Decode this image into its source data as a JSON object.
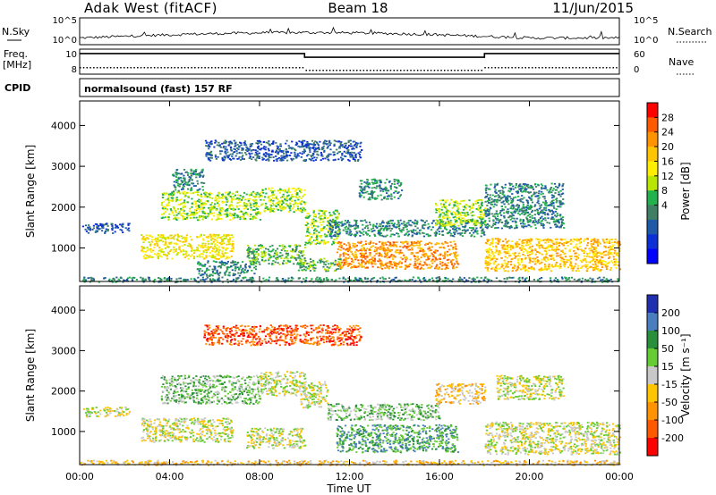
{
  "header": {
    "station": "Adak West (fitACF)",
    "beam": "Beam 18",
    "date": "11/Jun/2015"
  },
  "top_panels": {
    "nsky_label": "N.Sky",
    "nsky_ticks": [
      "10^5",
      "10^0"
    ],
    "nsearch_label": "N.Search",
    "nsearch_ticks": [
      "10^5",
      "10^0"
    ],
    "freq_label_1": "Freq.",
    "freq_label_2": "[MHz]",
    "freq_ticks": [
      "10",
      "8"
    ],
    "freq_mhz": {
      "t": [
        0,
        10,
        10,
        18,
        18,
        24
      ],
      "v": [
        10.6,
        10.6,
        10.1,
        10.1,
        10.6,
        10.6
      ]
    },
    "nave_label": "Nave",
    "nave_ticks": [
      "60",
      "0"
    ],
    "cpid_label": "CPID",
    "cpid_text": "normalsound (fast) 157 RF"
  },
  "chart_data": [
    {
      "type": "heatmap",
      "name": "power",
      "xlabel": "Time UT",
      "ylabel": "Slant Range [km]",
      "x_ticks": [
        "00:00",
        "04:00",
        "08:00",
        "12:00",
        "16:00",
        "20:00",
        "00:00"
      ],
      "y_ticks": [
        "1000",
        "2000",
        "3000",
        "4000"
      ],
      "xlim": [
        0,
        24
      ],
      "ylim": [
        180,
        4600
      ],
      "colorbar": {
        "label": "Power [dB]",
        "ticks": [
          "28",
          "24",
          "20",
          "16",
          "12",
          "8",
          "4"
        ],
        "colors": [
          "#ff0000",
          "#ff5a00",
          "#ff9400",
          "#ffc400",
          "#ffee00",
          "#b8e600",
          "#22b14c",
          "#3f7f66",
          "#1e5aa8",
          "#0d2fd6",
          "#0000ff"
        ]
      },
      "regions": [
        {
          "t0": 0.0,
          "t1": 24.0,
          "r0": 180,
          "r1": 300,
          "level": 3
        },
        {
          "t0": 0.1,
          "t1": 2.2,
          "r0": 1380,
          "r1": 1620,
          "level": 2
        },
        {
          "t0": 2.7,
          "t1": 6.8,
          "r0": 750,
          "r1": 1350,
          "level": 6
        },
        {
          "t0": 5.2,
          "t1": 7.8,
          "r0": 330,
          "r1": 700,
          "level": 3
        },
        {
          "t0": 3.6,
          "t1": 8.0,
          "r0": 1700,
          "r1": 2400,
          "level": 5
        },
        {
          "t0": 4.1,
          "t1": 5.5,
          "r0": 2400,
          "r1": 2950,
          "level": 3
        },
        {
          "t0": 8.0,
          "t1": 10.0,
          "r0": 1900,
          "r1": 2500,
          "level": 5
        },
        {
          "t0": 7.4,
          "t1": 10.0,
          "r0": 600,
          "r1": 1100,
          "level": 4
        },
        {
          "t0": 9.7,
          "t1": 11.6,
          "r0": 450,
          "r1": 760,
          "level": 4
        },
        {
          "t0": 10.0,
          "t1": 11.5,
          "r0": 1100,
          "r1": 1950,
          "level": 5
        },
        {
          "t0": 11.4,
          "t1": 16.8,
          "r0": 500,
          "r1": 1180,
          "level": 8
        },
        {
          "t0": 11.0,
          "t1": 18.0,
          "r0": 1300,
          "r1": 1700,
          "level": 3
        },
        {
          "t0": 15.8,
          "t1": 18.0,
          "r0": 1550,
          "r1": 2200,
          "level": 5
        },
        {
          "t0": 12.4,
          "t1": 14.3,
          "r0": 2200,
          "r1": 2700,
          "level": 3
        },
        {
          "t0": 18.0,
          "t1": 21.5,
          "r0": 1500,
          "r1": 2600,
          "level": 3
        },
        {
          "t0": 18.0,
          "t1": 24.0,
          "r0": 450,
          "r1": 1250,
          "level": 7
        },
        {
          "t0": 5.5,
          "t1": 12.5,
          "r0": 3150,
          "r1": 3650,
          "level": 2
        }
      ]
    },
    {
      "type": "heatmap",
      "name": "velocity",
      "xlabel": "Time UT",
      "ylabel": "Slant Range [km]",
      "x_ticks": [
        "00:00",
        "04:00",
        "08:00",
        "12:00",
        "16:00",
        "20:00",
        "00:00"
      ],
      "y_ticks": [
        "1000",
        "2000",
        "3000",
        "4000"
      ],
      "xlim": [
        0,
        24
      ],
      "ylim": [
        180,
        4600
      ],
      "colorbar": {
        "label": "Velocity [m s⁻¹]",
        "ticks": [
          "200",
          "100",
          "50",
          "15",
          "-15",
          "-50",
          "-100",
          "-200"
        ],
        "colors": [
          "#1f2fb0",
          "#4a7fbf",
          "#2a8f3a",
          "#66cc33",
          "#c8c8c8",
          "#ffc400",
          "#ff9400",
          "#ff5a00",
          "#ff0000"
        ]
      },
      "regions": [
        {
          "t0": 0.0,
          "t1": 24.0,
          "r0": 180,
          "r1": 300,
          "level": 3
        },
        {
          "t0": 0.1,
          "t1": 2.2,
          "r0": 1380,
          "r1": 1620,
          "level": 4
        },
        {
          "t0": 2.7,
          "t1": 6.8,
          "r0": 750,
          "r1": 1350,
          "level": 4
        },
        {
          "t0": 3.6,
          "t1": 8.0,
          "r0": 1700,
          "r1": 2400,
          "level": 5
        },
        {
          "t0": 8.0,
          "t1": 10.0,
          "r0": 1900,
          "r1": 2500,
          "level": 4
        },
        {
          "t0": 7.4,
          "t1": 10.0,
          "r0": 600,
          "r1": 1100,
          "level": 4
        },
        {
          "t0": 9.8,
          "t1": 11.0,
          "r0": 1600,
          "r1": 2250,
          "level": 4
        },
        {
          "t0": 11.4,
          "t1": 16.8,
          "r0": 500,
          "r1": 1180,
          "level": 6
        },
        {
          "t0": 11.0,
          "t1": 16.0,
          "r0": 1300,
          "r1": 1700,
          "level": 5
        },
        {
          "t0": 15.8,
          "t1": 18.0,
          "r0": 1700,
          "r1": 2200,
          "level": 3
        },
        {
          "t0": 18.0,
          "t1": 24.0,
          "r0": 450,
          "r1": 1250,
          "level": 4
        },
        {
          "t0": 18.5,
          "t1": 21.5,
          "r0": 1800,
          "r1": 2400,
          "level": 4
        },
        {
          "t0": 5.5,
          "t1": 12.5,
          "r0": 3150,
          "r1": 3650,
          "level": 1
        }
      ]
    }
  ]
}
